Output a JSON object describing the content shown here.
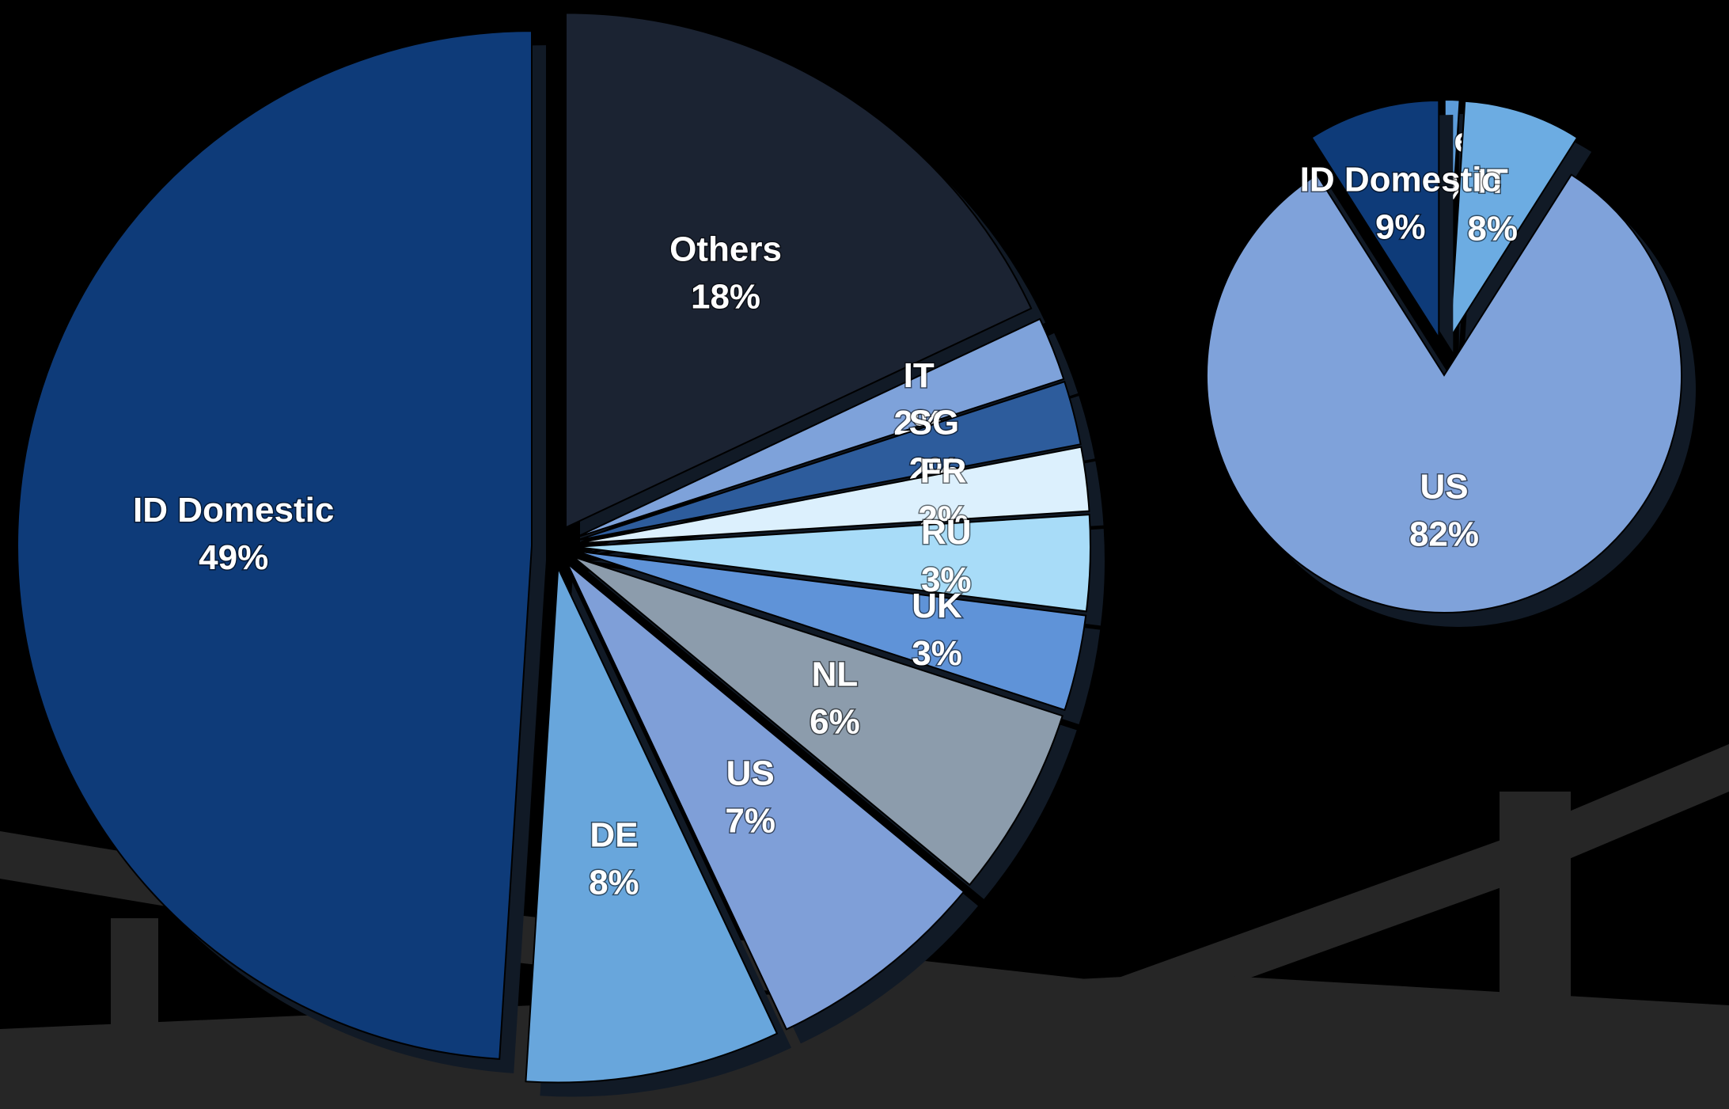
{
  "chart_data": [
    {
      "type": "pie",
      "categories": [
        "Others",
        "IT",
        "SG",
        "FR",
        "RU",
        "UK",
        "NL",
        "US",
        "DE",
        "ID Domestic"
      ],
      "values": [
        18,
        2,
        2,
        2,
        3,
        3,
        6,
        7,
        8,
        49
      ],
      "value_labels": [
        "18%",
        "2%",
        "2%",
        "2%",
        "3%",
        "3%",
        "6%",
        "7%",
        "8%",
        "49%"
      ],
      "colors": [
        "#1b2332",
        "#7ea2da",
        "#2d5c9c",
        "#dcf0fd",
        "#a8dcf8",
        "#5f93d8",
        "#8c9cac",
        "#7f9fd8",
        "#68a6dc",
        "#0e3b79"
      ]
    },
    {
      "type": "pie",
      "categories": [
        "Others",
        "IT",
        "US",
        "ID Domestic"
      ],
      "values": [
        1,
        8,
        82,
        9
      ],
      "value_labels": [
        "1%",
        "8%",
        "82%",
        "9%"
      ],
      "colors": [
        "#5c9cda",
        "#6cacE2",
        "#7fa2da",
        "#0e3b79"
      ]
    }
  ]
}
